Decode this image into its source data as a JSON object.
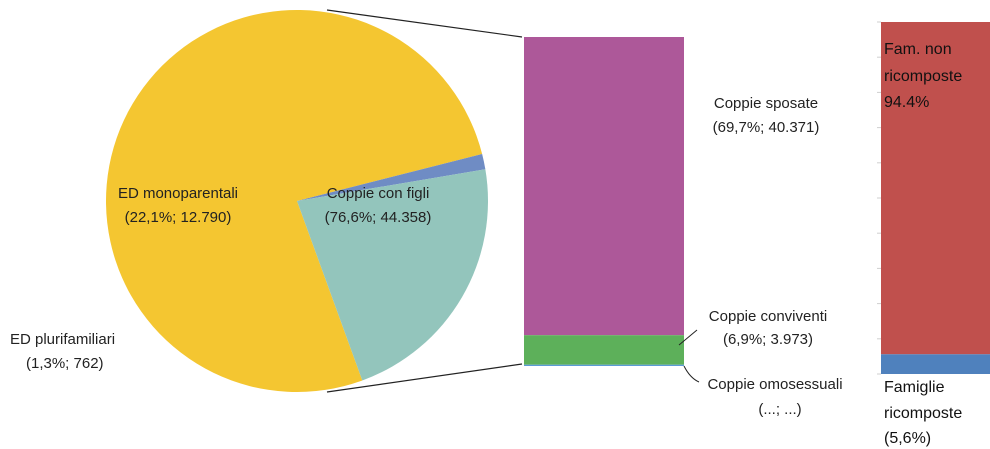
{
  "colors": {
    "coppie_con_figli": "#F4C631",
    "ed_monoparentali": "#93C5BC",
    "ed_plurifamiliari": "#6F8CC4",
    "coppie_sposate": "#AD5899",
    "coppie_conviventi": "#5DB05A",
    "coppie_omosessuali": "#5B9BD5",
    "fam_non_ricomposte": "#C0504D",
    "famiglie_ricomposte": "#4F81BD",
    "connector": "#222222",
    "tick": "#cfcfcf"
  },
  "chart_data": [
    {
      "type": "pie",
      "slices": [
        {
          "id": "coppie_con_figli",
          "label_line1": "Coppie con figli",
          "label_line2": "(76,6%; 44.358)",
          "percent": 76.6,
          "count": 44358
        },
        {
          "id": "ed_plurifamiliari",
          "label_line1": "ED plurifamiliari",
          "label_line2": "(1,3%; 762)",
          "percent": 1.3,
          "count": 762
        },
        {
          "id": "ed_monoparentali",
          "label_line1": "ED monoparentali",
          "label_line2": "(22,1%; 12.790)",
          "percent": 22.1,
          "count": 12790
        }
      ]
    },
    {
      "type": "bar",
      "stacked": true,
      "segments": [
        {
          "id": "coppie_sposate",
          "label_line1": "Coppie sposate",
          "label_line2": "(69,7%; 40.371)",
          "percent": 69.7,
          "count": 40371
        },
        {
          "id": "coppie_conviventi",
          "label_line1": "Coppie conviventi",
          "label_line2": "(6,9%; 3.973)",
          "percent": 6.9,
          "count": 3973
        },
        {
          "id": "coppie_omosessuali",
          "label_line1": "Coppie omosessuali",
          "label_line2": "(...; ...)",
          "percent": 0.3,
          "count": null
        }
      ]
    },
    {
      "type": "bar",
      "stacked": true,
      "segments": [
        {
          "id": "fam_non_ricomposte",
          "label_lines": [
            "Fam. non",
            "ricomposte",
            "94.4%"
          ],
          "percent": 94.4
        },
        {
          "id": "famiglie_ricomposte",
          "label_lines": [
            "Famiglie",
            "ricomposte",
            "(5,6%)"
          ],
          "percent": 5.6
        }
      ]
    }
  ]
}
